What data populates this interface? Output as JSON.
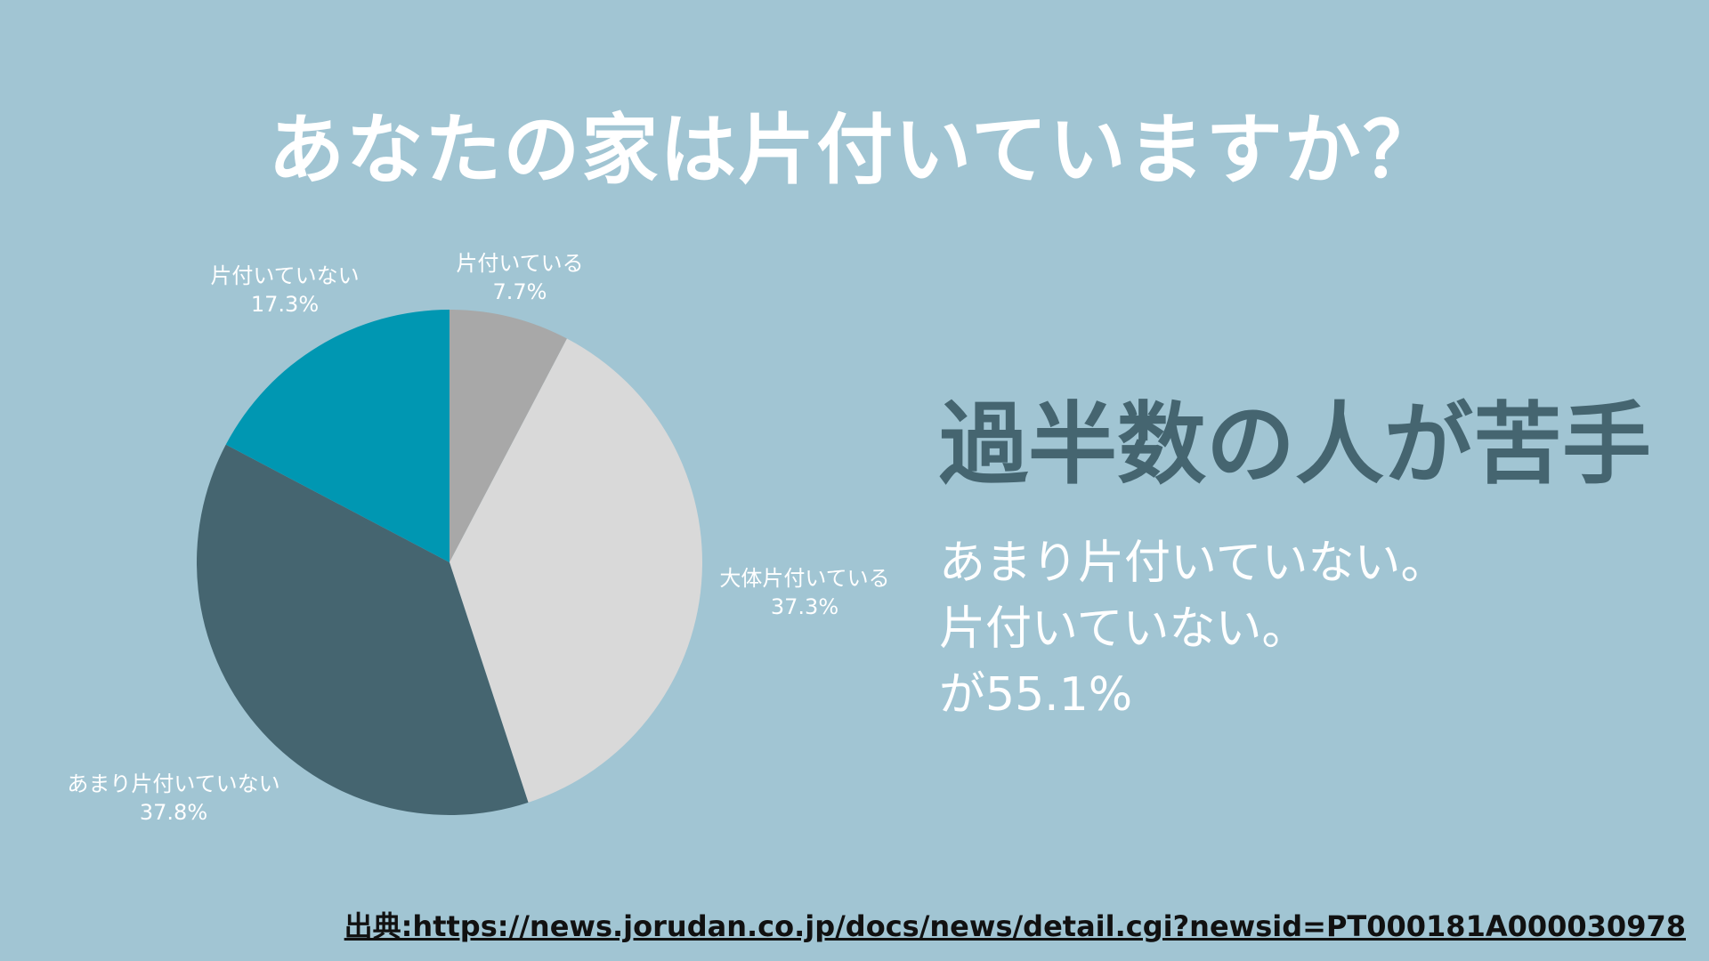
{
  "title": "あなたの家は片付いていますか？",
  "chart_data": {
    "type": "pie",
    "start_angle_deg": 0,
    "direction": "clockwise",
    "slices": [
      {
        "label": "片付いている",
        "value": 7.7,
        "value_label": "7.7%",
        "color": "#a8a8a8"
      },
      {
        "label": "大体片付いている",
        "value": 37.3,
        "value_label": "37.3%",
        "color": "#d9d9d9"
      },
      {
        "label": "あまり片付いていない",
        "value": 37.8,
        "value_label": "37.8%",
        "color": "#456570"
      },
      {
        "label": "片付いていない",
        "value": 17.3,
        "value_label": "17.3%",
        "color": "#0097b2"
      }
    ]
  },
  "headline": "過半数の人が苦手",
  "body_lines": [
    "あまり片付いていない。",
    "片付いていない。",
    "が55.1%"
  ],
  "source": "出典:https://news.jorudan.co.jp/docs/news/detail.cgi?newsid=PT000181A000030978"
}
